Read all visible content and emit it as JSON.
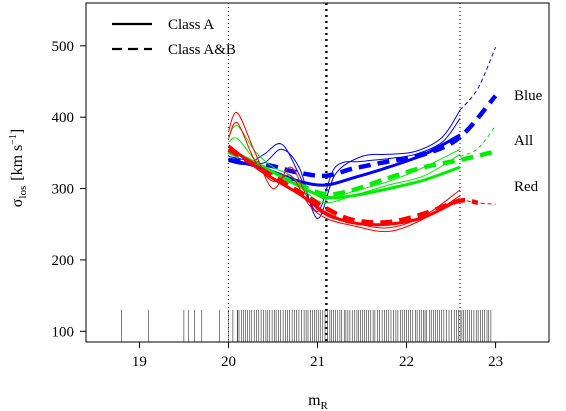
{
  "chart_data": {
    "type": "line",
    "title": "",
    "xlabel": "m",
    "xlabel_subscript": "R",
    "ylabel": "σ",
    "ylabel_subscript": "los",
    "ylabel_units": "[km s",
    "ylabel_units_exponent": "−1",
    "ylabel_units_close": "]",
    "xlim": [
      18.4,
      23.6
    ],
    "ylim": [
      85,
      560
    ],
    "xticks": [
      19,
      20,
      21,
      22,
      23
    ],
    "yticks": [
      100,
      200,
      300,
      400,
      500
    ],
    "grid": false,
    "legend": {
      "placement": "top-left",
      "entries": [
        {
          "label": "Class A",
          "style": "solid"
        },
        {
          "label": "Class A&B",
          "style": "dashed"
        }
      ]
    },
    "vertical_lines": [
      {
        "x": 20.0,
        "style": "dotted-thin"
      },
      {
        "x": 21.1,
        "style": "dotted-thick"
      },
      {
        "x": 22.6,
        "style": "dotted-thin"
      }
    ],
    "series": [
      {
        "name": "Blue",
        "color": "#0000ff",
        "fit_solid": {
          "x": [
            20.0,
            20.4,
            20.8,
            21.1,
            21.4,
            21.8,
            22.2,
            22.6
          ],
          "y": [
            341,
            328,
            310,
            305,
            315,
            330,
            348,
            375
          ]
        },
        "fit_dashed": {
          "x": [
            20.0,
            20.4,
            20.8,
            21.1,
            21.4,
            21.8,
            22.2,
            22.6,
            23.0
          ],
          "y": [
            340,
            334,
            322,
            318,
            328,
            338,
            348,
            372,
            430
          ]
        },
        "wiggle_a": {
          "x": [
            20.0,
            20.2,
            20.4,
            20.6,
            20.8,
            21.0,
            21.2,
            21.5,
            21.8,
            22.1,
            22.4,
            22.6
          ],
          "y": [
            338,
            334,
            348,
            362,
            318,
            268,
            330,
            338,
            342,
            348,
            365,
            398
          ]
        },
        "wiggle_b": {
          "x": [
            20.0,
            20.2,
            20.4,
            20.6,
            20.8,
            21.0,
            21.2,
            21.5,
            21.8,
            22.1,
            22.4,
            22.6
          ],
          "y": [
            345,
            340,
            336,
            355,
            328,
            258,
            320,
            345,
            348,
            352,
            372,
            410
          ]
        },
        "extension": {
          "x": [
            22.6,
            22.8,
            23.0
          ],
          "y": [
            410,
            440,
            498
          ]
        }
      },
      {
        "name": "All",
        "color": "#00ee00",
        "fit_solid": {
          "x": [
            20.0,
            20.4,
            20.8,
            21.1,
            21.4,
            21.8,
            22.2,
            22.6
          ],
          "y": [
            355,
            330,
            303,
            288,
            290,
            300,
            312,
            330
          ]
        },
        "fit_dashed": {
          "x": [
            20.0,
            20.4,
            20.8,
            21.1,
            21.4,
            21.8,
            22.2,
            22.6,
            23.0
          ],
          "y": [
            352,
            328,
            305,
            292,
            298,
            315,
            330,
            340,
            352
          ]
        },
        "wiggle_a": {
          "x": [
            20.0,
            20.1,
            20.3,
            20.5,
            20.7,
            20.9,
            21.1,
            21.4,
            21.8,
            22.2,
            22.6
          ],
          "y": [
            372,
            388,
            352,
            330,
            318,
            292,
            280,
            290,
            305,
            318,
            348
          ]
        },
        "wiggle_b": {
          "x": [
            20.0,
            20.1,
            20.3,
            20.5,
            20.7,
            20.9,
            21.1,
            21.4,
            21.8,
            22.2,
            22.6
          ],
          "y": [
            365,
            370,
            340,
            322,
            310,
            298,
            285,
            296,
            310,
            330,
            355
          ]
        },
        "extension": {
          "x": [
            22.6,
            22.8,
            23.0
          ],
          "y": [
            345,
            356,
            388
          ]
        }
      },
      {
        "name": "Red",
        "color": "#ff0000",
        "fit_solid": {
          "x": [
            20.0,
            20.4,
            20.8,
            21.1,
            21.4,
            21.8,
            22.2,
            22.6
          ],
          "y": [
            360,
            322,
            292,
            265,
            252,
            250,
            260,
            285
          ]
        },
        "fit_dashed": {
          "x": [
            20.0,
            20.4,
            20.8,
            21.1,
            21.4,
            21.8,
            22.2,
            22.6,
            22.8
          ],
          "y": [
            355,
            325,
            295,
            272,
            256,
            253,
            265,
            283,
            280
          ]
        },
        "wiggle_a": {
          "x": [
            20.0,
            20.1,
            20.3,
            20.5,
            20.7,
            20.9,
            21.1,
            21.4,
            21.8,
            22.2,
            22.6
          ],
          "y": [
            380,
            406,
            350,
            300,
            330,
            285,
            262,
            252,
            245,
            262,
            298
          ]
        },
        "wiggle_b": {
          "x": [
            20.0,
            20.1,
            20.3,
            20.5,
            20.7,
            20.9,
            21.1,
            21.4,
            21.8,
            22.2,
            22.6
          ],
          "y": [
            370,
            392,
            338,
            310,
            318,
            278,
            258,
            248,
            240,
            258,
            290
          ]
        },
        "extension": {
          "x": [
            22.6,
            22.8,
            23.0
          ],
          "y": [
            285,
            280,
            278
          ]
        }
      }
    ],
    "rug": {
      "height": 130,
      "sparse": [
        18.8,
        19.1,
        19.5,
        19.55,
        19.62,
        19.7,
        19.9,
        20.0,
        20.05,
        20.1
      ],
      "dense_range": [
        20.1,
        22.95
      ]
    }
  }
}
